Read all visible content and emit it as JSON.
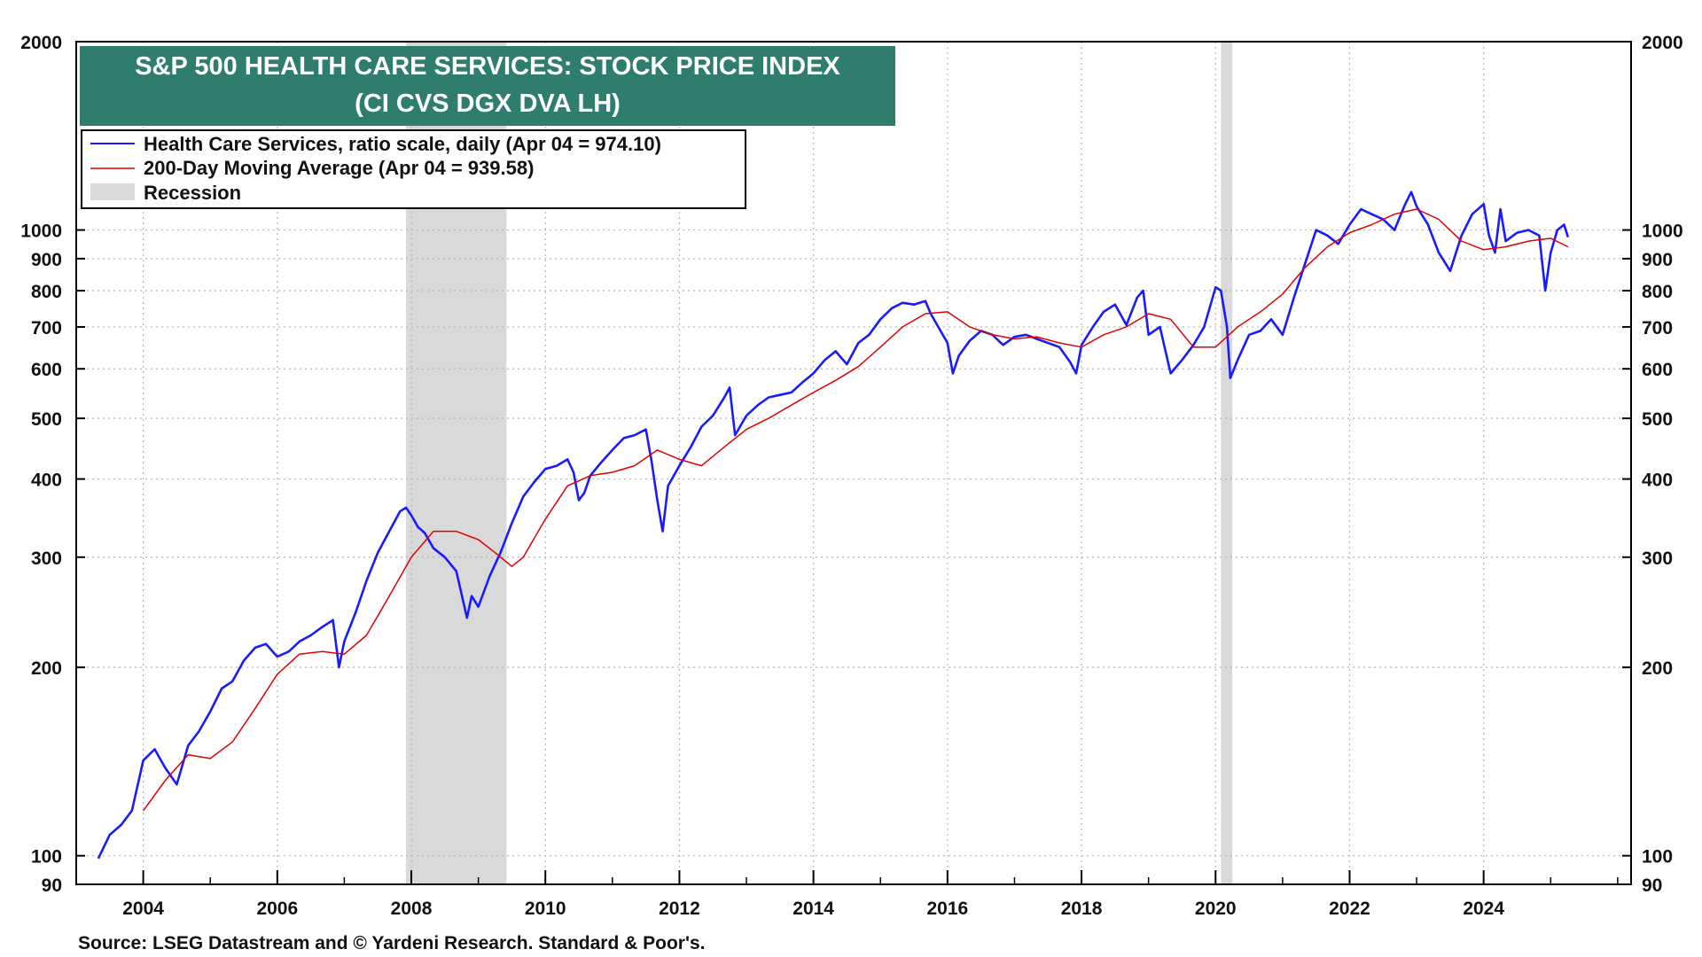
{
  "chart_data": {
    "type": "line",
    "title": "S&P 500 HEALTH CARE SERVICES: STOCK PRICE INDEX",
    "subtitle": "(CI CVS DGX DVA LH)",
    "scale": "log",
    "xlim": [
      2003.0,
      2026.2
    ],
    "ylim": [
      90,
      2000
    ],
    "x_ticks": [
      2004,
      2006,
      2008,
      2010,
      2012,
      2014,
      2016,
      2018,
      2020,
      2022,
      2024
    ],
    "y_ticks": [
      90,
      100,
      200,
      300,
      400,
      500,
      600,
      700,
      800,
      900,
      1000,
      2000
    ],
    "legend": [
      "Health Care Services, ratio scale, daily (Apr 04 = 974.10)",
      "200-Day Moving Average (Apr 04 = 939.58)",
      "Recession"
    ],
    "legend_placement": "top-left",
    "recessions": [
      {
        "start": 2007.92,
        "end": 2009.42
      },
      {
        "start": 2020.08,
        "end": 2020.25
      }
    ],
    "series": [
      {
        "name": "Health Care Services",
        "color": "#1a1aff",
        "x": [
          2003.33,
          2003.5,
          2003.67,
          2003.83,
          2004.0,
          2004.17,
          2004.33,
          2004.5,
          2004.67,
          2004.83,
          2005.0,
          2005.17,
          2005.33,
          2005.5,
          2005.67,
          2005.83,
          2006.0,
          2006.17,
          2006.33,
          2006.5,
          2006.67,
          2006.83,
          2006.92,
          2007.0,
          2007.17,
          2007.33,
          2007.5,
          2007.67,
          2007.83,
          2007.92,
          2008.0,
          2008.1,
          2008.2,
          2008.33,
          2008.5,
          2008.67,
          2008.83,
          2008.9,
          2009.0,
          2009.17,
          2009.33,
          2009.5,
          2009.67,
          2009.83,
          2010.0,
          2010.17,
          2010.33,
          2010.42,
          2010.5,
          2010.58,
          2010.67,
          2010.83,
          2011.0,
          2011.17,
          2011.33,
          2011.5,
          2011.58,
          2011.67,
          2011.75,
          2011.83,
          2012.0,
          2012.17,
          2012.33,
          2012.5,
          2012.67,
          2012.75,
          2012.83,
          2013.0,
          2013.17,
          2013.33,
          2013.5,
          2013.67,
          2013.83,
          2014.0,
          2014.17,
          2014.33,
          2014.5,
          2014.67,
          2014.83,
          2015.0,
          2015.17,
          2015.33,
          2015.5,
          2015.67,
          2015.75,
          2015.83,
          2016.0,
          2016.08,
          2016.17,
          2016.33,
          2016.5,
          2016.67,
          2016.83,
          2017.0,
          2017.17,
          2017.33,
          2017.5,
          2017.67,
          2017.83,
          2017.92,
          2018.0,
          2018.17,
          2018.33,
          2018.5,
          2018.67,
          2018.83,
          2018.92,
          2019.0,
          2019.17,
          2019.33,
          2019.5,
          2019.67,
          2019.83,
          2020.0,
          2020.08,
          2020.17,
          2020.22,
          2020.33,
          2020.5,
          2020.67,
          2020.83,
          2021.0,
          2021.17,
          2021.33,
          2021.5,
          2021.67,
          2021.83,
          2022.0,
          2022.17,
          2022.33,
          2022.5,
          2022.67,
          2022.83,
          2022.92,
          2023.0,
          2023.17,
          2023.33,
          2023.5,
          2023.67,
          2023.83,
          2024.0,
          2024.08,
          2024.17,
          2024.25,
          2024.33,
          2024.5,
          2024.67,
          2024.83,
          2024.92,
          2025.0,
          2025.1,
          2025.2,
          2025.26
        ],
        "values": [
          99,
          108,
          112,
          118,
          142,
          148,
          138,
          130,
          150,
          158,
          170,
          185,
          190,
          205,
          215,
          218,
          208,
          212,
          220,
          225,
          232,
          238,
          200,
          220,
          245,
          275,
          305,
          330,
          355,
          360,
          350,
          335,
          328,
          310,
          300,
          285,
          240,
          260,
          250,
          280,
          305,
          340,
          375,
          395,
          415,
          420,
          430,
          410,
          370,
          380,
          405,
          425,
          445,
          465,
          470,
          480,
          430,
          370,
          330,
          390,
          420,
          450,
          485,
          505,
          540,
          560,
          470,
          505,
          525,
          540,
          545,
          550,
          570,
          590,
          620,
          640,
          610,
          660,
          680,
          720,
          750,
          765,
          760,
          770,
          735,
          710,
          660,
          590,
          630,
          665,
          690,
          680,
          655,
          675,
          680,
          670,
          660,
          650,
          615,
          590,
          655,
          700,
          740,
          760,
          705,
          780,
          800,
          680,
          700,
          590,
          620,
          655,
          700,
          810,
          800,
          700,
          580,
          620,
          680,
          690,
          720,
          680,
          780,
          880,
          1000,
          980,
          950,
          1020,
          1080,
          1060,
          1040,
          1000,
          1100,
          1150,
          1090,
          1020,
          920,
          860,
          980,
          1060,
          1100,
          980,
          920,
          1080,
          960,
          990,
          1000,
          980,
          800,
          920,
          1000,
          1020,
          974
        ]
      },
      {
        "name": "200-Day Moving Average",
        "color": "#e00000",
        "x": [
          2004.0,
          2004.33,
          2004.67,
          2005.0,
          2005.33,
          2005.67,
          2006.0,
          2006.33,
          2006.67,
          2007.0,
          2007.33,
          2007.67,
          2008.0,
          2008.33,
          2008.67,
          2009.0,
          2009.25,
          2009.5,
          2009.67,
          2010.0,
          2010.33,
          2010.67,
          2011.0,
          2011.33,
          2011.67,
          2012.0,
          2012.33,
          2012.67,
          2013.0,
          2013.33,
          2013.67,
          2014.0,
          2014.33,
          2014.67,
          2015.0,
          2015.33,
          2015.67,
          2016.0,
          2016.33,
          2016.67,
          2017.0,
          2017.33,
          2017.67,
          2018.0,
          2018.33,
          2018.67,
          2019.0,
          2019.33,
          2019.67,
          2020.0,
          2020.33,
          2020.67,
          2021.0,
          2021.33,
          2021.67,
          2022.0,
          2022.33,
          2022.67,
          2023.0,
          2023.33,
          2023.67,
          2024.0,
          2024.33,
          2024.67,
          2025.0,
          2025.26
        ],
        "values": [
          118,
          132,
          145,
          143,
          152,
          172,
          195,
          210,
          212,
          210,
          225,
          260,
          300,
          330,
          330,
          320,
          305,
          290,
          300,
          345,
          390,
          405,
          410,
          420,
          445,
          430,
          420,
          450,
          480,
          500,
          525,
          550,
          575,
          605,
          650,
          700,
          735,
          740,
          700,
          680,
          670,
          675,
          660,
          650,
          680,
          700,
          735,
          720,
          650,
          650,
          700,
          740,
          790,
          870,
          940,
          990,
          1020,
          1060,
          1080,
          1040,
          960,
          930,
          940,
          960,
          970,
          940
        ]
      }
    ]
  },
  "footer": {
    "source": "Source: LSEG Datastream and © Yardeni Research. Standard & Poor's."
  },
  "colors": {
    "title_bg": "#2e7d6e",
    "recession": "#d9d9d9",
    "grid": "#b5b5b5"
  }
}
